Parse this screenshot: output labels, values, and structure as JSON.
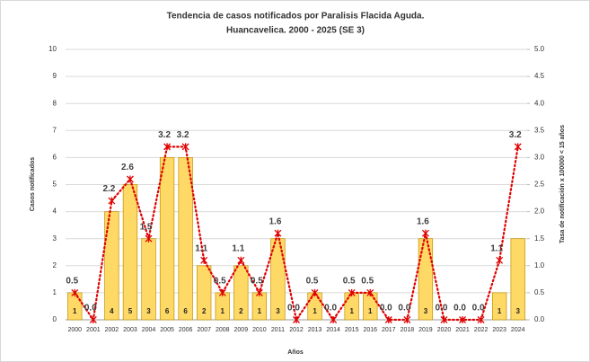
{
  "chart_data": {
    "type": "bar",
    "title": [
      "Tendencia de casos notificados por Paralisis Flacida Aguda.",
      "Huancavelica. 2000 - 2025 (SE 3)"
    ],
    "x_label": "Años",
    "y_label": "Casos notificados",
    "y2_label": "Tasa de notificación x 100000 < 15 años",
    "categories": [
      "2000",
      "2001",
      "2002",
      "2003",
      "2004",
      "2005",
      "2006",
      "2007",
      "2008",
      "2009",
      "2010",
      "2011",
      "2012",
      "2013",
      "2014",
      "2015",
      "2016",
      "2017",
      "2018",
      "2019",
      "2020",
      "2021",
      "2022",
      "2023",
      "2024"
    ],
    "series": [
      {
        "name": "Casos",
        "type": "bar",
        "color": "#ffd966",
        "values": [
          1,
          0,
          4,
          5,
          3,
          6,
          6,
          2,
          1,
          2,
          1,
          3,
          0,
          1,
          0,
          1,
          1,
          0,
          0,
          3,
          0,
          0,
          0,
          1,
          3
        ]
      },
      {
        "name": "Tasa",
        "type": "line",
        "axis": "y2",
        "color": "#e00000",
        "values": [
          0.5,
          0,
          2.2,
          2.6,
          1.5,
          3.2,
          3.2,
          1.1,
          0.5,
          1.1,
          0.5,
          1.6,
          0,
          0.5,
          0,
          0.5,
          0.5,
          0,
          0,
          1.6,
          0,
          0,
          0,
          1.1,
          3.2
        ],
        "value_labels": [
          "0.5",
          "0.0",
          "2.2",
          "2.6",
          "1.5",
          "3.2",
          "3.2",
          "1.1",
          "0.5",
          "1.1",
          "0.5",
          "1.6",
          "0.0",
          "0.5",
          "0.0",
          "0.5",
          "0.5",
          "0.0",
          "0.0",
          "1.6",
          "0.0",
          "0.0",
          "0.0",
          "1.1",
          "3.2"
        ]
      }
    ],
    "ylim": [
      0,
      10
    ],
    "yticks": [
      0,
      1,
      2,
      3,
      4,
      5,
      6,
      7,
      8,
      9,
      10
    ],
    "y2lim": [
      0,
      5
    ],
    "y2ticks": [
      {
        "value": 0,
        "label": "0.0"
      },
      0.5,
      {
        "value": 1,
        "label": "1.0"
      },
      1.5,
      {
        "value": 2,
        "label": "2.0"
      },
      2.5,
      {
        "value": 3,
        "label": "3.0"
      },
      3.5,
      {
        "value": 4,
        "label": "4.0"
      },
      4.5,
      {
        "value": 5,
        "label": "5.0"
      }
    ],
    "grid": true
  }
}
